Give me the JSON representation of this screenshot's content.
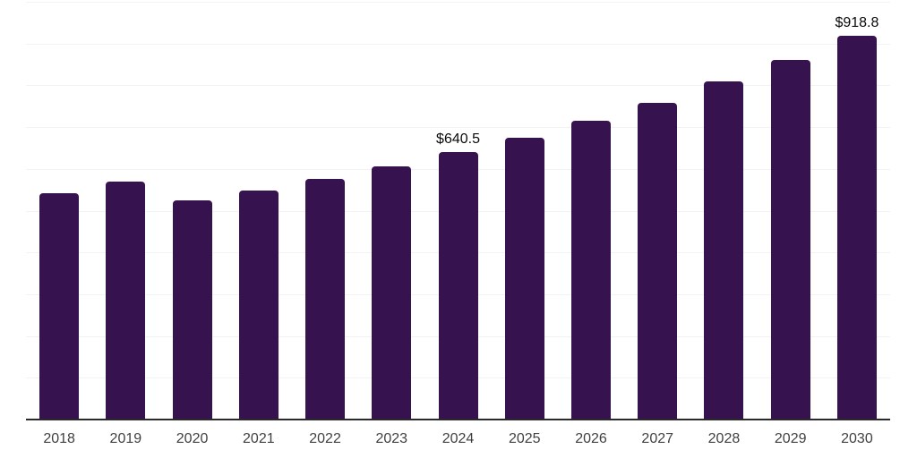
{
  "chart_data": {
    "type": "bar",
    "title": "",
    "xlabel": "",
    "ylabel": "",
    "categories": [
      "2018",
      "2019",
      "2020",
      "2021",
      "2022",
      "2023",
      "2024",
      "2025",
      "2026",
      "2027",
      "2028",
      "2029",
      "2030"
    ],
    "values": [
      541,
      570,
      524,
      549,
      576,
      605,
      640.5,
      675,
      716,
      759,
      810,
      860,
      918.8
    ],
    "data_labels": [
      "",
      "",
      "",
      "",
      "",
      "",
      "$640.5",
      "",
      "",
      "",
      "",
      "",
      "$918.8"
    ],
    "ylim": [
      0,
      1000
    ],
    "gridline_interval": 100,
    "grid": true,
    "y_tick_labels_visible": false,
    "legend_position": "none",
    "currency_prefix": "$"
  },
  "colors": {
    "bar": "#36124E",
    "gridline": "#F2F2F4",
    "axis_line": "#2A2A2A",
    "tick_label": "#404040",
    "data_label": "#0A0A0A",
    "background": "#FFFFFF"
  }
}
